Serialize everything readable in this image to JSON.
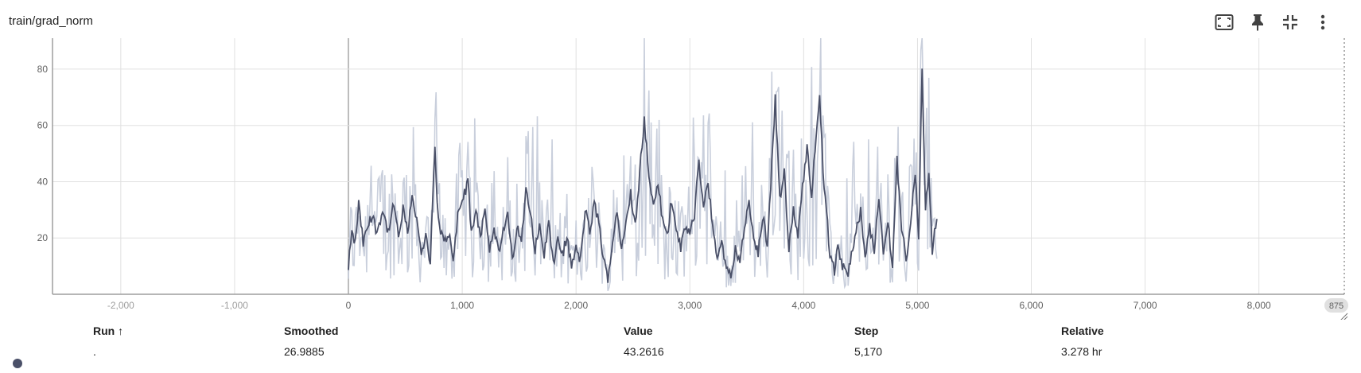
{
  "card": {
    "title": "train/grad_norm"
  },
  "toolbar": {
    "icons": [
      "fit-domain-icon",
      "pin-icon",
      "collapse-icon",
      "more-vert-icon"
    ]
  },
  "chart_data": {
    "type": "line",
    "title": "",
    "xlabel": "",
    "ylabel": "",
    "xlim": [
      -2600,
      8750
    ],
    "ylim": [
      0,
      91
    ],
    "x_ticks": [
      "-2,000",
      "-1,000",
      "0",
      "1,000",
      "2,000",
      "3,000",
      "4,000",
      "5,000",
      "6,000",
      "7,000",
      "8,000"
    ],
    "x_tick_values": [
      -2000,
      -1000,
      0,
      1000,
      2000,
      3000,
      4000,
      5000,
      6000,
      7000,
      8000
    ],
    "y_ticks": [
      "20",
      "40",
      "60",
      "80"
    ],
    "y_tick_values": [
      20,
      40,
      60,
      80
    ],
    "x_end_label": "875",
    "grid": true,
    "colors": {
      "raw": "#c9cfdc",
      "smoothed": "#4a5068",
      "grid": "#e0e0e0",
      "axis": "#9e9e9e"
    },
    "x_range_data": [
      0,
      5170
    ],
    "smoothed_anchor_points": [
      [
        0,
        8
      ],
      [
        25,
        22
      ],
      [
        60,
        18
      ],
      [
        90,
        32
      ],
      [
        130,
        18
      ],
      [
        170,
        24
      ],
      [
        210,
        28
      ],
      [
        250,
        22
      ],
      [
        300,
        30
      ],
      [
        350,
        22
      ],
      [
        400,
        32
      ],
      [
        440,
        20
      ],
      [
        480,
        30
      ],
      [
        520,
        22
      ],
      [
        560,
        36
      ],
      [
        600,
        26
      ],
      [
        640,
        14
      ],
      [
        680,
        20
      ],
      [
        720,
        12
      ],
      [
        760,
        52
      ],
      [
        790,
        26
      ],
      [
        840,
        18
      ],
      [
        880,
        22
      ],
      [
        920,
        12
      ],
      [
        960,
        28
      ],
      [
        1050,
        40
      ],
      [
        1080,
        22
      ],
      [
        1120,
        30
      ],
      [
        1160,
        20
      ],
      [
        1200,
        32
      ],
      [
        1240,
        16
      ],
      [
        1280,
        24
      ],
      [
        1320,
        14
      ],
      [
        1360,
        22
      ],
      [
        1400,
        28
      ],
      [
        1440,
        12
      ],
      [
        1480,
        24
      ],
      [
        1520,
        18
      ],
      [
        1560,
        38
      ],
      [
        1600,
        30
      ],
      [
        1640,
        16
      ],
      [
        1680,
        24
      ],
      [
        1720,
        14
      ],
      [
        1760,
        26
      ],
      [
        1800,
        10
      ],
      [
        1840,
        20
      ],
      [
        1880,
        14
      ],
      [
        1920,
        20
      ],
      [
        1960,
        10
      ],
      [
        2000,
        16
      ],
      [
        2040,
        12
      ],
      [
        2080,
        30
      ],
      [
        2120,
        22
      ],
      [
        2160,
        32
      ],
      [
        2200,
        26
      ],
      [
        2240,
        12
      ],
      [
        2280,
        6
      ],
      [
        2320,
        18
      ],
      [
        2360,
        30
      ],
      [
        2400,
        16
      ],
      [
        2440,
        28
      ],
      [
        2480,
        36
      ],
      [
        2520,
        24
      ],
      [
        2560,
        44
      ],
      [
        2600,
        62
      ],
      [
        2640,
        42
      ],
      [
        2680,
        30
      ],
      [
        2720,
        40
      ],
      [
        2760,
        26
      ],
      [
        2800,
        20
      ],
      [
        2840,
        34
      ],
      [
        2880,
        24
      ],
      [
        2920,
        16
      ],
      [
        2960,
        24
      ],
      [
        3000,
        22
      ],
      [
        3040,
        28
      ],
      [
        3080,
        48
      ],
      [
        3120,
        30
      ],
      [
        3160,
        40
      ],
      [
        3200,
        24
      ],
      [
        3240,
        14
      ],
      [
        3280,
        18
      ],
      [
        3320,
        10
      ],
      [
        3360,
        6
      ],
      [
        3400,
        16
      ],
      [
        3440,
        12
      ],
      [
        3480,
        24
      ],
      [
        3520,
        32
      ],
      [
        3560,
        20
      ],
      [
        3600,
        14
      ],
      [
        3640,
        28
      ],
      [
        3680,
        18
      ],
      [
        3720,
        46
      ],
      [
        3750,
        70
      ],
      [
        3790,
        34
      ],
      [
        3830,
        44
      ],
      [
        3870,
        16
      ],
      [
        3910,
        30
      ],
      [
        3950,
        20
      ],
      [
        3990,
        38
      ],
      [
        4030,
        52
      ],
      [
        4070,
        36
      ],
      [
        4110,
        56
      ],
      [
        4140,
        72
      ],
      [
        4170,
        44
      ],
      [
        4200,
        30
      ],
      [
        4230,
        14
      ],
      [
        4270,
        8
      ],
      [
        4300,
        18
      ],
      [
        4340,
        10
      ],
      [
        4380,
        6
      ],
      [
        4420,
        14
      ],
      [
        4460,
        22
      ],
      [
        4500,
        30
      ],
      [
        4540,
        12
      ],
      [
        4580,
        24
      ],
      [
        4620,
        16
      ],
      [
        4660,
        34
      ],
      [
        4700,
        14
      ],
      [
        4740,
        26
      ],
      [
        4780,
        10
      ],
      [
        4820,
        48
      ],
      [
        4860,
        24
      ],
      [
        4900,
        12
      ],
      [
        4940,
        26
      ],
      [
        4980,
        44
      ],
      [
        5010,
        20
      ],
      [
        5040,
        82
      ],
      [
        5070,
        30
      ],
      [
        5100,
        44
      ],
      [
        5130,
        16
      ],
      [
        5170,
        27
      ]
    ]
  },
  "table": {
    "headers": {
      "run": "Run ↑",
      "smoothed": "Smoothed",
      "value": "Value",
      "step": "Step",
      "relative": "Relative"
    },
    "row": {
      "run": ".",
      "smoothed": "26.9885",
      "value": "43.2616",
      "step": "5,170",
      "relative": "3.278 hr"
    }
  }
}
